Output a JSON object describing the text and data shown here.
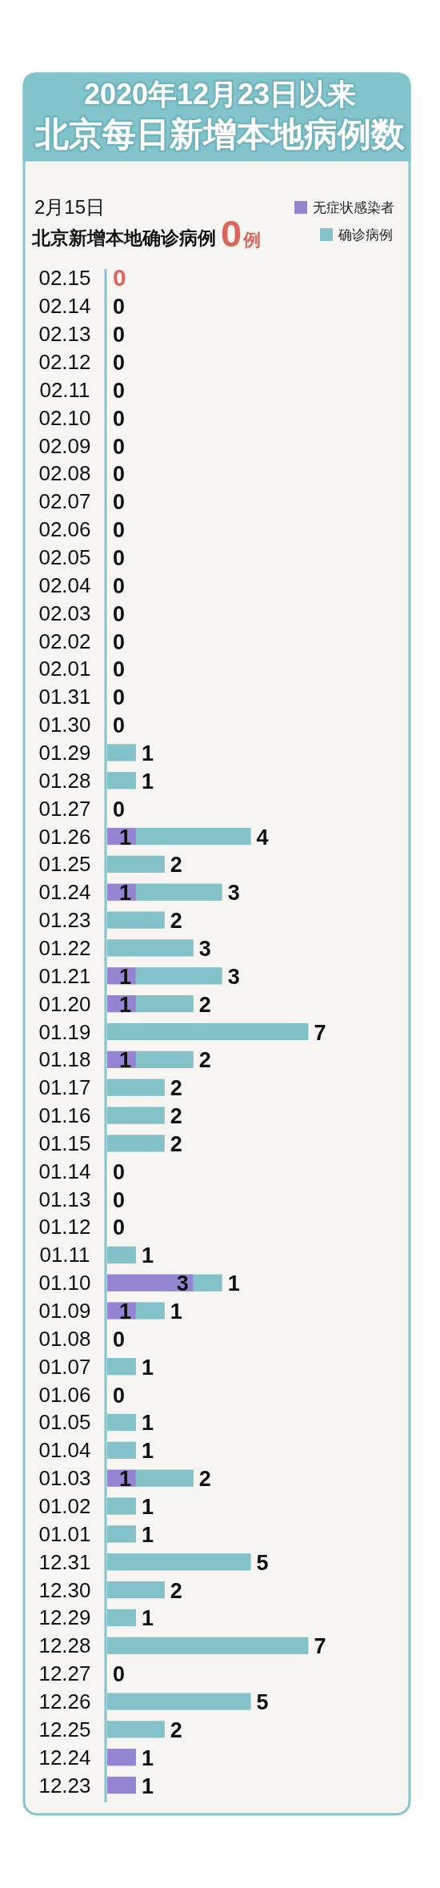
{
  "chart_data": {
    "type": "bar",
    "orientation": "horizontal",
    "stacked": true,
    "title": "北京每日新增本地病例数",
    "subtitle": "2020年12月23日以来",
    "categories": [
      "02.15",
      "02.14",
      "02.13",
      "02.12",
      "02.11",
      "02.10",
      "02.09",
      "02.08",
      "02.07",
      "02.06",
      "02.05",
      "02.04",
      "02.03",
      "02.02",
      "02.01",
      "01.31",
      "01.30",
      "01.29",
      "01.28",
      "01.27",
      "01.26",
      "01.25",
      "01.24",
      "01.23",
      "01.22",
      "01.21",
      "01.20",
      "01.19",
      "01.18",
      "01.17",
      "01.16",
      "01.15",
      "01.14",
      "01.13",
      "01.12",
      "01.11",
      "01.10",
      "01.09",
      "01.08",
      "01.07",
      "01.06",
      "01.05",
      "01.04",
      "01.03",
      "01.02",
      "01.01",
      "12.31",
      "12.30",
      "12.29",
      "12.28",
      "12.27",
      "12.26",
      "12.25",
      "12.24",
      "12.23"
    ],
    "series": [
      {
        "name": "无症状感染者",
        "color": "#9584d1",
        "values": [
          null,
          null,
          null,
          null,
          null,
          null,
          null,
          null,
          null,
          null,
          null,
          null,
          null,
          null,
          null,
          null,
          null,
          null,
          null,
          null,
          1,
          null,
          1,
          null,
          null,
          1,
          1,
          null,
          1,
          null,
          null,
          null,
          null,
          null,
          null,
          null,
          3,
          1,
          null,
          null,
          null,
          null,
          null,
          1,
          null,
          null,
          null,
          null,
          null,
          null,
          null,
          null,
          null,
          1,
          1
        ]
      },
      {
        "name": "确诊病例",
        "color": "#83c2c9",
        "values": [
          0,
          0,
          0,
          0,
          0,
          0,
          0,
          0,
          0,
          0,
          0,
          0,
          0,
          0,
          0,
          0,
          0,
          1,
          1,
          0,
          4,
          2,
          3,
          2,
          3,
          3,
          2,
          7,
          2,
          2,
          2,
          2,
          0,
          0,
          0,
          1,
          1,
          1,
          0,
          1,
          0,
          1,
          1,
          2,
          1,
          1,
          5,
          2,
          1,
          7,
          0,
          5,
          2,
          null,
          null
        ]
      }
    ],
    "data_labels": true,
    "tick_labels": "y",
    "legend": "top right",
    "annotations": [
      "2月15日",
      "北京新增本地确诊病例",
      "0",
      "例"
    ]
  }
}
